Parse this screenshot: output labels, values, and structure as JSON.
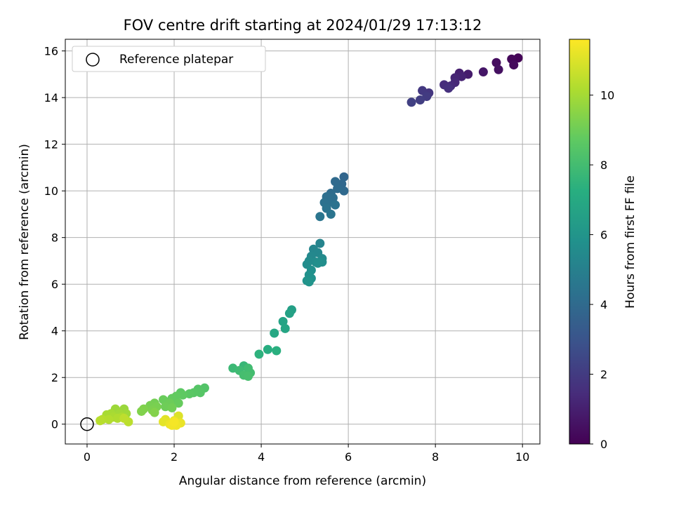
{
  "chart_data": {
    "type": "scatter",
    "title": "FOV centre drift starting at 2024/01/29 17:13:12",
    "xlabel": "Angular distance from reference (arcmin)",
    "ylabel": "Rotation from reference (arcmin)",
    "xlim": [
      -0.5,
      10.4
    ],
    "ylim": [
      -0.85,
      16.5
    ],
    "xticks": [
      0,
      2,
      4,
      6,
      8,
      10
    ],
    "yticks": [
      0,
      2,
      4,
      6,
      8,
      10,
      12,
      14,
      16
    ],
    "grid": true,
    "legend": {
      "location": "top-left",
      "entries": [
        {
          "label": "Reference platepar",
          "marker": "open-circle"
        }
      ]
    },
    "reference_point": {
      "x": 0,
      "y": 0
    },
    "colorbar": {
      "label": "Hours from first FF file",
      "colormap": "viridis",
      "range": [
        0,
        11.6
      ],
      "ticks": [
        0,
        2,
        4,
        6,
        8,
        10
      ]
    },
    "points": [
      {
        "x": 9.9,
        "y": 15.7,
        "c": 0.1
      },
      {
        "x": 9.75,
        "y": 15.65,
        "c": 0.2
      },
      {
        "x": 9.8,
        "y": 15.4,
        "c": 0.3
      },
      {
        "x": 9.4,
        "y": 15.5,
        "c": 0.4
      },
      {
        "x": 9.45,
        "y": 15.2,
        "c": 0.5
      },
      {
        "x": 9.1,
        "y": 15.1,
        "c": 0.7
      },
      {
        "x": 8.75,
        "y": 15.0,
        "c": 0.9
      },
      {
        "x": 8.55,
        "y": 15.05,
        "c": 1.0
      },
      {
        "x": 8.6,
        "y": 14.9,
        "c": 1.1
      },
      {
        "x": 8.45,
        "y": 14.85,
        "c": 1.2
      },
      {
        "x": 8.45,
        "y": 14.65,
        "c": 1.3
      },
      {
        "x": 8.35,
        "y": 14.5,
        "c": 1.4
      },
      {
        "x": 8.2,
        "y": 14.55,
        "c": 1.5
      },
      {
        "x": 8.3,
        "y": 14.4,
        "c": 1.6
      },
      {
        "x": 7.85,
        "y": 14.2,
        "c": 1.8
      },
      {
        "x": 7.7,
        "y": 14.3,
        "c": 1.9
      },
      {
        "x": 7.8,
        "y": 14.05,
        "c": 2.0
      },
      {
        "x": 7.65,
        "y": 13.9,
        "c": 2.1
      },
      {
        "x": 7.45,
        "y": 13.8,
        "c": 2.2
      },
      {
        "x": 5.9,
        "y": 10.6,
        "c": 3.8
      },
      {
        "x": 5.85,
        "y": 10.3,
        "c": 3.9
      },
      {
        "x": 5.9,
        "y": 10.0,
        "c": 3.95
      },
      {
        "x": 5.7,
        "y": 10.4,
        "c": 4.0
      },
      {
        "x": 5.75,
        "y": 10.1,
        "c": 4.05
      },
      {
        "x": 5.6,
        "y": 9.9,
        "c": 4.1
      },
      {
        "x": 5.65,
        "y": 9.7,
        "c": 4.15
      },
      {
        "x": 5.5,
        "y": 9.75,
        "c": 4.2
      },
      {
        "x": 5.55,
        "y": 9.5,
        "c": 4.25
      },
      {
        "x": 5.45,
        "y": 9.5,
        "c": 4.3
      },
      {
        "x": 5.7,
        "y": 9.4,
        "c": 4.35
      },
      {
        "x": 5.5,
        "y": 9.25,
        "c": 4.4
      },
      {
        "x": 5.6,
        "y": 9.0,
        "c": 4.45
      },
      {
        "x": 5.35,
        "y": 8.9,
        "c": 4.5
      },
      {
        "x": 5.35,
        "y": 7.75,
        "c": 5.2
      },
      {
        "x": 5.2,
        "y": 7.5,
        "c": 5.3
      },
      {
        "x": 5.3,
        "y": 7.35,
        "c": 5.35
      },
      {
        "x": 5.15,
        "y": 7.2,
        "c": 5.4
      },
      {
        "x": 5.4,
        "y": 7.1,
        "c": 5.45
      },
      {
        "x": 5.1,
        "y": 7.0,
        "c": 5.5
      },
      {
        "x": 5.25,
        "y": 6.95,
        "c": 5.55
      },
      {
        "x": 5.05,
        "y": 6.85,
        "c": 5.6
      },
      {
        "x": 5.4,
        "y": 6.95,
        "c": 5.65
      },
      {
        "x": 5.3,
        "y": 6.9,
        "c": 5.7
      },
      {
        "x": 5.15,
        "y": 6.6,
        "c": 5.75
      },
      {
        "x": 5.1,
        "y": 6.4,
        "c": 5.8
      },
      {
        "x": 5.15,
        "y": 6.25,
        "c": 5.85
      },
      {
        "x": 5.05,
        "y": 6.15,
        "c": 5.9
      },
      {
        "x": 5.1,
        "y": 6.1,
        "c": 5.95
      },
      {
        "x": 4.7,
        "y": 4.9,
        "c": 6.5
      },
      {
        "x": 4.65,
        "y": 4.75,
        "c": 6.6
      },
      {
        "x": 4.5,
        "y": 4.4,
        "c": 6.7
      },
      {
        "x": 4.55,
        "y": 4.1,
        "c": 6.8
      },
      {
        "x": 4.3,
        "y": 3.9,
        "c": 6.9
      },
      {
        "x": 4.15,
        "y": 3.2,
        "c": 7.2
      },
      {
        "x": 4.35,
        "y": 3.15,
        "c": 7.3
      },
      {
        "x": 3.95,
        "y": 3.0,
        "c": 7.4
      },
      {
        "x": 3.6,
        "y": 2.5,
        "c": 7.7
      },
      {
        "x": 3.35,
        "y": 2.4,
        "c": 7.8
      },
      {
        "x": 3.5,
        "y": 2.3,
        "c": 7.9
      },
      {
        "x": 3.7,
        "y": 2.4,
        "c": 7.95
      },
      {
        "x": 3.75,
        "y": 2.2,
        "c": 8.0
      },
      {
        "x": 3.6,
        "y": 2.1,
        "c": 8.05
      },
      {
        "x": 3.7,
        "y": 2.05,
        "c": 8.1
      },
      {
        "x": 2.7,
        "y": 1.55,
        "c": 8.4
      },
      {
        "x": 2.55,
        "y": 1.5,
        "c": 8.45
      },
      {
        "x": 2.6,
        "y": 1.35,
        "c": 8.5
      },
      {
        "x": 2.45,
        "y": 1.35,
        "c": 8.55
      },
      {
        "x": 2.35,
        "y": 1.3,
        "c": 8.6
      },
      {
        "x": 2.15,
        "y": 1.35,
        "c": 8.65
      },
      {
        "x": 2.2,
        "y": 1.25,
        "c": 8.7
      },
      {
        "x": 2.05,
        "y": 1.2,
        "c": 8.75
      },
      {
        "x": 1.95,
        "y": 1.1,
        "c": 8.8
      },
      {
        "x": 2.1,
        "y": 0.9,
        "c": 8.85
      },
      {
        "x": 1.75,
        "y": 1.05,
        "c": 8.9
      },
      {
        "x": 1.9,
        "y": 0.9,
        "c": 8.95
      },
      {
        "x": 1.8,
        "y": 0.75,
        "c": 9.0
      },
      {
        "x": 1.95,
        "y": 0.7,
        "c": 9.05
      },
      {
        "x": 1.55,
        "y": 0.9,
        "c": 9.1
      },
      {
        "x": 1.45,
        "y": 0.8,
        "c": 9.15
      },
      {
        "x": 1.6,
        "y": 0.75,
        "c": 9.2
      },
      {
        "x": 1.5,
        "y": 0.6,
        "c": 9.25
      },
      {
        "x": 1.3,
        "y": 0.65,
        "c": 9.3
      },
      {
        "x": 1.25,
        "y": 0.55,
        "c": 9.35
      },
      {
        "x": 1.55,
        "y": 0.5,
        "c": 9.4
      },
      {
        "x": 0.85,
        "y": 0.65,
        "c": 9.8
      },
      {
        "x": 0.65,
        "y": 0.65,
        "c": 9.85
      },
      {
        "x": 0.9,
        "y": 0.45,
        "c": 9.9
      },
      {
        "x": 0.75,
        "y": 0.45,
        "c": 9.95
      },
      {
        "x": 0.55,
        "y": 0.45,
        "c": 10.0
      },
      {
        "x": 0.45,
        "y": 0.4,
        "c": 10.05
      },
      {
        "x": 0.6,
        "y": 0.3,
        "c": 10.1
      },
      {
        "x": 0.8,
        "y": 0.3,
        "c": 10.15
      },
      {
        "x": 0.7,
        "y": 0.25,
        "c": 10.2
      },
      {
        "x": 0.5,
        "y": 0.2,
        "c": 10.25
      },
      {
        "x": 0.35,
        "y": 0.2,
        "c": 10.3
      },
      {
        "x": 0.3,
        "y": 0.15,
        "c": 10.35
      },
      {
        "x": 0.95,
        "y": 0.1,
        "c": 10.4
      },
      {
        "x": 0.85,
        "y": 0.25,
        "c": 10.45
      },
      {
        "x": 2.1,
        "y": 0.35,
        "c": 11.0
      },
      {
        "x": 1.8,
        "y": 0.2,
        "c": 11.1
      },
      {
        "x": 1.75,
        "y": 0.1,
        "c": 11.15
      },
      {
        "x": 2.0,
        "y": 0.15,
        "c": 11.2
      },
      {
        "x": 2.15,
        "y": 0.05,
        "c": 11.25
      },
      {
        "x": 1.9,
        "y": 0.0,
        "c": 11.3
      },
      {
        "x": 2.05,
        "y": -0.05,
        "c": 11.35
      },
      {
        "x": 1.95,
        "y": -0.05,
        "c": 11.4
      },
      {
        "x": 2.0,
        "y": 0.1,
        "c": 11.45
      }
    ]
  }
}
